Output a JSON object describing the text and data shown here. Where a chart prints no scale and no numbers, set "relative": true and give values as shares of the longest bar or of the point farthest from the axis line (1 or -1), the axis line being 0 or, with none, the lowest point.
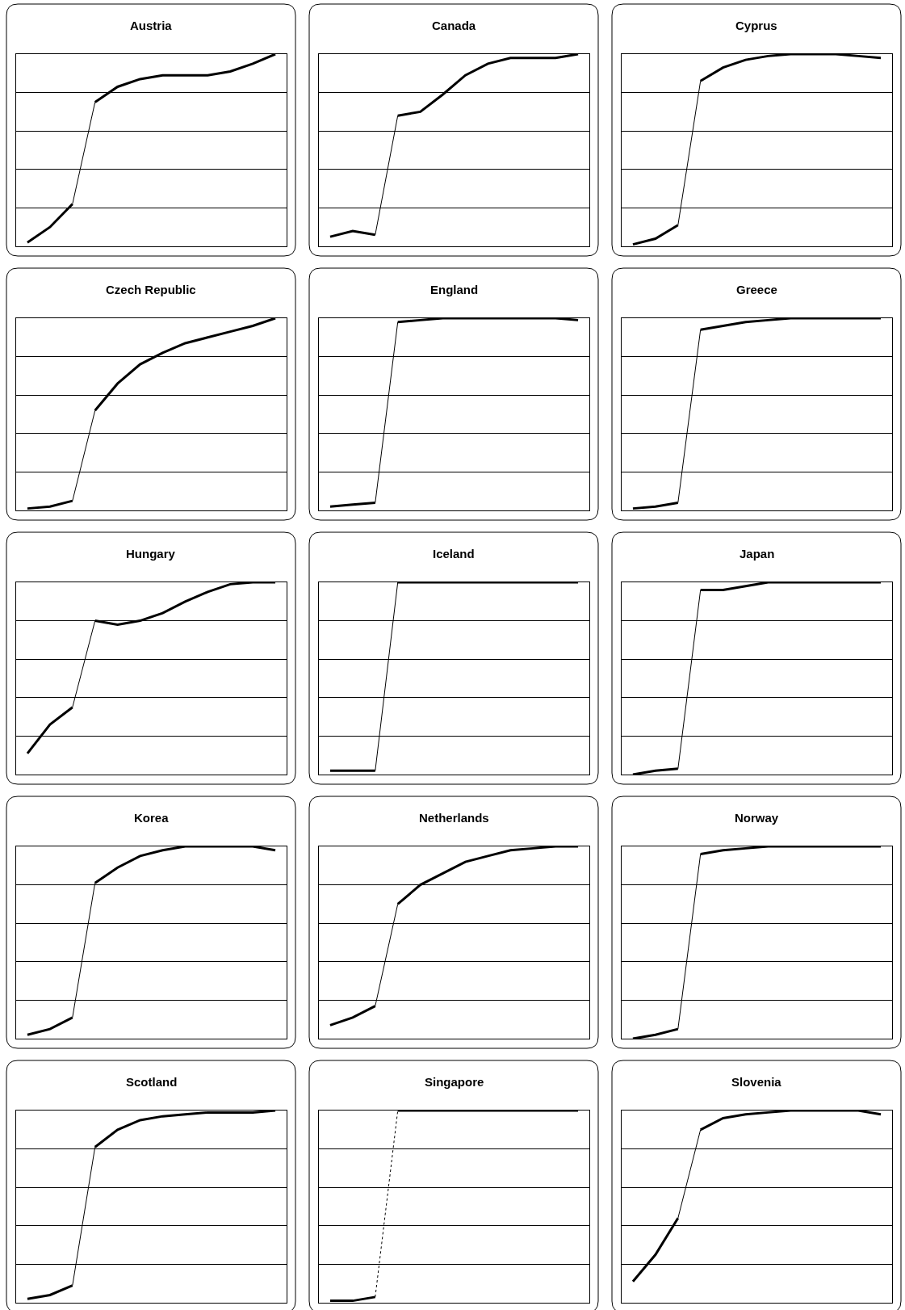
{
  "chart_data": [
    {
      "type": "line",
      "title": "Austria",
      "relative": true,
      "grid": "y",
      "categories": [
        null,
        null,
        null,
        null,
        null,
        null,
        null,
        null,
        null,
        null,
        null,
        null
      ],
      "series": [
        {
          "color": "#000000",
          "line_style": "solid",
          "values": [
            0.02,
            0.1,
            0.22,
            null,
            null,
            null,
            null,
            null,
            null,
            null,
            null,
            null
          ]
        },
        {
          "color": "#000000",
          "line_style": "solid",
          "values": [
            null,
            null,
            0.22,
            0.75,
            null,
            null,
            null,
            null,
            null,
            null,
            null,
            null
          ]
        },
        {
          "color": "#000000",
          "line_style": "solid",
          "values": [
            null,
            null,
            null,
            0.75,
            0.83,
            0.87,
            0.89,
            0.89,
            0.89,
            0.91,
            0.95,
            1
          ]
        }
      ]
    },
    {
      "type": "line",
      "title": "Canada",
      "relative": true,
      "grid": "y",
      "categories": [
        null,
        null,
        null,
        null,
        null,
        null,
        null,
        null,
        null,
        null,
        null,
        null
      ],
      "series": [
        {
          "color": "#000000",
          "line_style": "solid",
          "values": [
            0.05,
            0.08,
            0.06,
            null,
            null,
            null,
            null,
            null,
            null,
            null,
            null,
            null
          ]
        },
        {
          "color": "#000000",
          "line_style": "solid",
          "values": [
            null,
            null,
            0.06,
            0.68,
            null,
            null,
            null,
            null,
            null,
            null,
            null,
            null
          ]
        },
        {
          "color": "#000000",
          "line_style": "solid",
          "values": [
            null,
            null,
            null,
            0.68,
            0.7,
            0.79,
            0.89,
            0.95,
            0.98,
            0.98,
            0.98,
            1
          ]
        }
      ]
    },
    {
      "type": "line",
      "title": "Cyprus",
      "relative": true,
      "grid": "y",
      "categories": [
        null,
        null,
        null,
        null,
        null,
        null,
        null,
        null,
        null,
        null,
        null,
        null
      ],
      "series": [
        {
          "color": "#000000",
          "line_style": "solid",
          "values": [
            0.01,
            0.04,
            0.11,
            null,
            null,
            null,
            null,
            null,
            null,
            null,
            null,
            null
          ]
        },
        {
          "color": "#000000",
          "line_style": "solid",
          "values": [
            null,
            null,
            0.11,
            0.86,
            null,
            null,
            null,
            null,
            null,
            null,
            null,
            null
          ]
        },
        {
          "color": "#000000",
          "line_style": "solid",
          "values": [
            null,
            null,
            null,
            0.86,
            0.93,
            0.97,
            0.99,
            1,
            1,
            1,
            0.99,
            0.98
          ]
        }
      ]
    },
    {
      "type": "line",
      "title": "Czech Republic",
      "relative": true,
      "grid": "y",
      "categories": [
        null,
        null,
        null,
        null,
        null,
        null,
        null,
        null,
        null,
        null,
        null,
        null
      ],
      "series": [
        {
          "color": "#000000",
          "line_style": "solid",
          "values": [
            0.01,
            0.02,
            0.05,
            null,
            null,
            null,
            null,
            null,
            null,
            null,
            null,
            null
          ]
        },
        {
          "color": "#000000",
          "line_style": "solid",
          "values": [
            null,
            null,
            0.05,
            0.52,
            null,
            null,
            null,
            null,
            null,
            null,
            null,
            null
          ]
        },
        {
          "color": "#000000",
          "line_style": "solid",
          "values": [
            null,
            null,
            null,
            0.52,
            0.66,
            0.76,
            0.82,
            0.87,
            0.9,
            0.93,
            0.96,
            1
          ]
        }
      ]
    },
    {
      "type": "line",
      "title": "England",
      "relative": true,
      "grid": "y",
      "categories": [
        null,
        null,
        null,
        null,
        null,
        null,
        null,
        null,
        null,
        null,
        null,
        null
      ],
      "series": [
        {
          "color": "#000000",
          "line_style": "solid",
          "values": [
            0.02,
            0.03,
            0.04,
            null,
            null,
            null,
            null,
            null,
            null,
            null,
            null,
            null
          ]
        },
        {
          "color": "#000000",
          "line_style": "solid",
          "values": [
            null,
            null,
            0.04,
            0.98,
            null,
            null,
            null,
            null,
            null,
            null,
            null,
            null
          ]
        },
        {
          "color": "#000000",
          "line_style": "solid",
          "values": [
            null,
            null,
            null,
            0.98,
            0.99,
            1,
            1,
            1,
            1,
            1,
            1,
            0.99
          ]
        }
      ]
    },
    {
      "type": "line",
      "title": "Greece",
      "relative": true,
      "grid": "y",
      "categories": [
        null,
        null,
        null,
        null,
        null,
        null,
        null,
        null,
        null,
        null,
        null,
        null
      ],
      "series": [
        {
          "color": "#000000",
          "line_style": "solid",
          "values": [
            0.01,
            0.02,
            0.04,
            null,
            null,
            null,
            null,
            null,
            null,
            null,
            null,
            null
          ]
        },
        {
          "color": "#000000",
          "line_style": "solid",
          "values": [
            null,
            null,
            0.04,
            0.94,
            null,
            null,
            null,
            null,
            null,
            null,
            null,
            null
          ]
        },
        {
          "color": "#000000",
          "line_style": "solid",
          "values": [
            null,
            null,
            null,
            0.94,
            0.96,
            0.98,
            0.99,
            1,
            1,
            1,
            1,
            1
          ]
        }
      ]
    },
    {
      "type": "line",
      "title": "Hungary",
      "relative": true,
      "grid": "y",
      "categories": [
        null,
        null,
        null,
        null,
        null,
        null,
        null,
        null,
        null,
        null,
        null,
        null
      ],
      "series": [
        {
          "color": "#000000",
          "line_style": "solid",
          "values": [
            0.11,
            0.26,
            0.35,
            null,
            null,
            null,
            null,
            null,
            null,
            null,
            null,
            null
          ]
        },
        {
          "color": "#000000",
          "line_style": "solid",
          "values": [
            null,
            null,
            0.35,
            0.8,
            null,
            null,
            null,
            null,
            null,
            null,
            null,
            null
          ]
        },
        {
          "color": "#000000",
          "line_style": "solid",
          "values": [
            null,
            null,
            null,
            0.8,
            0.78,
            0.8,
            0.84,
            0.9,
            0.95,
            0.99,
            1,
            1
          ]
        }
      ]
    },
    {
      "type": "line",
      "title": "Iceland",
      "relative": true,
      "grid": "y",
      "categories": [
        null,
        null,
        null,
        null,
        null,
        null,
        null,
        null,
        null,
        null,
        null,
        null
      ],
      "series": [
        {
          "color": "#000000",
          "line_style": "solid",
          "values": [
            0.02,
            0.02,
            0.02,
            null,
            null,
            null,
            null,
            null,
            null,
            null,
            null,
            null
          ]
        },
        {
          "color": "#000000",
          "line_style": "solid",
          "values": [
            null,
            null,
            0.02,
            1,
            null,
            null,
            null,
            null,
            null,
            null,
            null,
            null
          ]
        },
        {
          "color": "#000000",
          "line_style": "solid",
          "values": [
            null,
            null,
            null,
            1,
            1,
            1,
            1,
            1,
            1,
            1,
            1,
            1
          ]
        }
      ]
    },
    {
      "type": "line",
      "title": "Japan",
      "relative": true,
      "grid": "y",
      "categories": [
        null,
        null,
        null,
        null,
        null,
        null,
        null,
        null,
        null,
        null,
        null,
        null
      ],
      "series": [
        {
          "color": "#000000",
          "line_style": "solid",
          "values": [
            0,
            0.02,
            0.03,
            null,
            null,
            null,
            null,
            null,
            null,
            null,
            null,
            null
          ]
        },
        {
          "color": "#000000",
          "line_style": "solid",
          "values": [
            null,
            null,
            0.03,
            0.96,
            null,
            null,
            null,
            null,
            null,
            null,
            null,
            null
          ]
        },
        {
          "color": "#000000",
          "line_style": "solid",
          "values": [
            null,
            null,
            null,
            0.96,
            0.96,
            0.98,
            1,
            1,
            1,
            1,
            1,
            1
          ]
        }
      ]
    },
    {
      "type": "line",
      "title": "Korea",
      "relative": true,
      "grid": "y",
      "categories": [
        null,
        null,
        null,
        null,
        null,
        null,
        null,
        null,
        null,
        null,
        null,
        null
      ],
      "series": [
        {
          "color": "#000000",
          "line_style": "solid",
          "values": [
            0.02,
            0.05,
            0.11,
            null,
            null,
            null,
            null,
            null,
            null,
            null,
            null,
            null
          ]
        },
        {
          "color": "#000000",
          "line_style": "solid",
          "values": [
            null,
            null,
            0.11,
            0.81,
            null,
            null,
            null,
            null,
            null,
            null,
            null,
            null
          ]
        },
        {
          "color": "#000000",
          "line_style": "solid",
          "values": [
            null,
            null,
            null,
            0.81,
            0.89,
            0.95,
            0.98,
            1,
            1,
            1,
            1,
            0.98
          ]
        }
      ]
    },
    {
      "type": "line",
      "title": "Netherlands",
      "relative": true,
      "grid": "y",
      "categories": [
        null,
        null,
        null,
        null,
        null,
        null,
        null,
        null,
        null,
        null,
        null,
        null
      ],
      "series": [
        {
          "color": "#000000",
          "line_style": "solid",
          "values": [
            0.07,
            0.11,
            0.17,
            null,
            null,
            null,
            null,
            null,
            null,
            null,
            null,
            null
          ]
        },
        {
          "color": "#000000",
          "line_style": "solid",
          "values": [
            null,
            null,
            0.17,
            0.7,
            null,
            null,
            null,
            null,
            null,
            null,
            null,
            null
          ]
        },
        {
          "color": "#000000",
          "line_style": "solid",
          "values": [
            null,
            null,
            null,
            0.7,
            0.8,
            0.86,
            0.92,
            0.95,
            0.98,
            0.99,
            1,
            1
          ]
        }
      ]
    },
    {
      "type": "line",
      "title": "Norway",
      "relative": true,
      "grid": "y",
      "categories": [
        null,
        null,
        null,
        null,
        null,
        null,
        null,
        null,
        null,
        null,
        null,
        null
      ],
      "series": [
        {
          "color": "#000000",
          "line_style": "solid",
          "values": [
            0,
            0.02,
            0.05,
            null,
            null,
            null,
            null,
            null,
            null,
            null,
            null,
            null
          ]
        },
        {
          "color": "#000000",
          "line_style": "solid",
          "values": [
            null,
            null,
            0.05,
            0.96,
            null,
            null,
            null,
            null,
            null,
            null,
            null,
            null
          ]
        },
        {
          "color": "#000000",
          "line_style": "solid",
          "values": [
            null,
            null,
            null,
            0.96,
            0.98,
            0.99,
            1,
            1,
            1,
            1,
            1,
            1
          ]
        }
      ]
    },
    {
      "type": "line",
      "title": "Scotland",
      "relative": true,
      "grid": "y",
      "categories": [
        null,
        null,
        null,
        null,
        null,
        null,
        null,
        null,
        null,
        null,
        null,
        null
      ],
      "series": [
        {
          "color": "#000000",
          "line_style": "solid",
          "values": [
            0.02,
            0.04,
            0.09,
            null,
            null,
            null,
            null,
            null,
            null,
            null,
            null,
            null
          ]
        },
        {
          "color": "#000000",
          "line_style": "solid",
          "values": [
            null,
            null,
            0.09,
            0.81,
            null,
            null,
            null,
            null,
            null,
            null,
            null,
            null
          ]
        },
        {
          "color": "#000000",
          "line_style": "solid",
          "values": [
            null,
            null,
            null,
            0.81,
            0.9,
            0.95,
            0.97,
            0.98,
            0.99,
            0.99,
            0.99,
            1
          ]
        }
      ]
    },
    {
      "type": "line",
      "title": "Singapore",
      "relative": true,
      "grid": "y",
      "categories": [
        null,
        null,
        null,
        null,
        null,
        null,
        null,
        null,
        null,
        null,
        null,
        null
      ],
      "series": [
        {
          "color": "#000000",
          "line_style": "solid",
          "values": [
            0.01,
            0.01,
            0.03,
            null,
            null,
            null,
            null,
            null,
            null,
            null,
            null,
            null
          ]
        },
        {
          "color": "#000000",
          "line_style": "dotted",
          "values": [
            null,
            null,
            0.03,
            1,
            null,
            null,
            null,
            null,
            null,
            null,
            null,
            null
          ]
        },
        {
          "color": "#000000",
          "line_style": "solid",
          "values": [
            null,
            null,
            null,
            1,
            1,
            1,
            1,
            1,
            1,
            1,
            1,
            1
          ]
        }
      ]
    },
    {
      "type": "line",
      "title": "Slovenia",
      "relative": true,
      "grid": "y",
      "categories": [
        null,
        null,
        null,
        null,
        null,
        null,
        null,
        null,
        null,
        null,
        null,
        null
      ],
      "series": [
        {
          "color": "#000000",
          "line_style": "solid",
          "values": [
            0.11,
            0.25,
            0.44,
            null,
            null,
            null,
            null,
            null,
            null,
            null,
            null,
            null
          ]
        },
        {
          "color": "#000000",
          "line_style": "solid",
          "values": [
            null,
            null,
            0.44,
            0.9,
            null,
            null,
            null,
            null,
            null,
            null,
            null,
            null
          ]
        },
        {
          "color": "#000000",
          "line_style": "solid",
          "values": [
            null,
            null,
            null,
            0.9,
            0.96,
            0.98,
            0.99,
            1,
            1,
            1,
            1,
            0.98
          ]
        }
      ]
    }
  ]
}
